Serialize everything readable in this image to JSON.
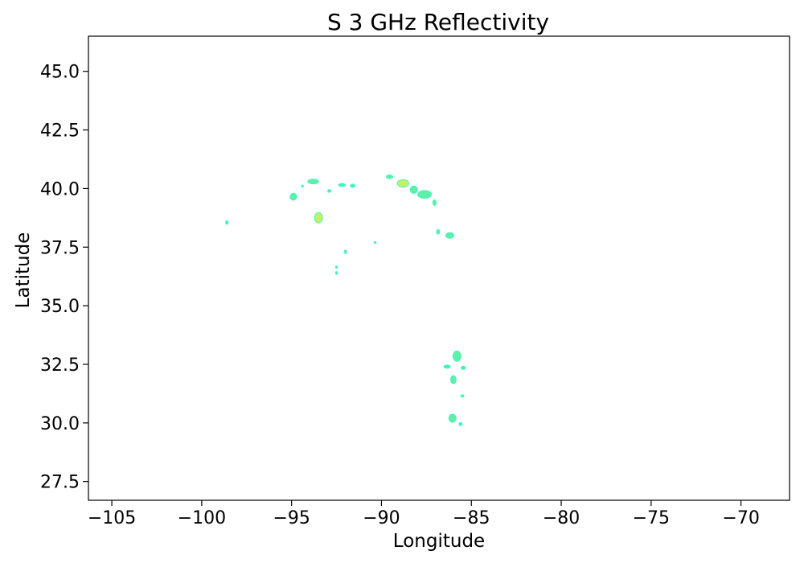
{
  "chart_data": {
    "type": "scatter",
    "title": "S 3 GHz Reflectivity",
    "xlabel": "Longitude",
    "ylabel": "Latitude",
    "xlim": [
      -106.3,
      -67.3
    ],
    "ylim": [
      26.7,
      46.5
    ],
    "x_ticks": [
      -105,
      -100,
      -95,
      -90,
      -85,
      -80,
      -75,
      -70
    ],
    "x_tick_labels": [
      "−105",
      "−100",
      "−95",
      "−90",
      "−85",
      "−80",
      "−75",
      "−70"
    ],
    "y_ticks": [
      27.5,
      30.0,
      32.5,
      35.0,
      37.5,
      40.0,
      42.5,
      45.0
    ],
    "y_tick_labels": [
      "27.5",
      "30.0",
      "32.5",
      "35.0",
      "37.5",
      "40.0",
      "42.5",
      "45.0"
    ],
    "grid": false,
    "colors": {
      "echo_light": "#40f5c0",
      "echo_mid": "#5ef0a6",
      "echo_strong": "#c6f064"
    },
    "points": [
      {
        "x": -98.6,
        "y": 38.55,
        "rx": 0.07,
        "ry": 0.08,
        "level": "light"
      },
      {
        "x": -94.9,
        "y": 39.65,
        "rx": 0.18,
        "ry": 0.15,
        "level": "mid"
      },
      {
        "x": -94.4,
        "y": 40.1,
        "rx": 0.04,
        "ry": 0.04,
        "level": "light"
      },
      {
        "x": -93.8,
        "y": 40.3,
        "rx": 0.3,
        "ry": 0.1,
        "level": "mid"
      },
      {
        "x": -93.5,
        "y": 38.75,
        "rx": 0.22,
        "ry": 0.22,
        "level": "strong"
      },
      {
        "x": -92.9,
        "y": 39.9,
        "rx": 0.09,
        "ry": 0.06,
        "level": "light"
      },
      {
        "x": -92.2,
        "y": 40.15,
        "rx": 0.2,
        "ry": 0.06,
        "level": "light"
      },
      {
        "x": -91.6,
        "y": 40.12,
        "rx": 0.13,
        "ry": 0.07,
        "level": "light"
      },
      {
        "x": -92.5,
        "y": 36.65,
        "rx": 0.03,
        "ry": 0.05,
        "level": "light"
      },
      {
        "x": -92.5,
        "y": 36.4,
        "rx": 0.04,
        "ry": 0.06,
        "level": "light"
      },
      {
        "x": -92.0,
        "y": 37.3,
        "rx": 0.06,
        "ry": 0.08,
        "level": "light"
      },
      {
        "x": -90.35,
        "y": 37.7,
        "rx": 0.03,
        "ry": 0.04,
        "level": "light"
      },
      {
        "x": -89.55,
        "y": 40.5,
        "rx": 0.18,
        "ry": 0.08,
        "level": "mid"
      },
      {
        "x": -88.8,
        "y": 40.22,
        "rx": 0.32,
        "ry": 0.16,
        "level": "strong"
      },
      {
        "x": -88.2,
        "y": 39.95,
        "rx": 0.2,
        "ry": 0.16,
        "level": "mid"
      },
      {
        "x": -87.6,
        "y": 39.75,
        "rx": 0.38,
        "ry": 0.17,
        "level": "mid"
      },
      {
        "x": -87.05,
        "y": 39.4,
        "rx": 0.09,
        "ry": 0.12,
        "level": "mid"
      },
      {
        "x": -86.85,
        "y": 38.15,
        "rx": 0.09,
        "ry": 0.1,
        "level": "mid"
      },
      {
        "x": -86.2,
        "y": 38.0,
        "rx": 0.22,
        "ry": 0.12,
        "level": "mid"
      },
      {
        "x": -85.8,
        "y": 32.85,
        "rx": 0.22,
        "ry": 0.22,
        "level": "mid"
      },
      {
        "x": -86.35,
        "y": 32.4,
        "rx": 0.18,
        "ry": 0.07,
        "level": "light"
      },
      {
        "x": -85.45,
        "y": 32.35,
        "rx": 0.12,
        "ry": 0.07,
        "level": "light"
      },
      {
        "x": -86.0,
        "y": 31.85,
        "rx": 0.15,
        "ry": 0.17,
        "level": "mid"
      },
      {
        "x": -85.5,
        "y": 31.15,
        "rx": 0.09,
        "ry": 0.05,
        "level": "light"
      },
      {
        "x": -86.05,
        "y": 30.2,
        "rx": 0.2,
        "ry": 0.17,
        "level": "mid"
      },
      {
        "x": -85.6,
        "y": 29.95,
        "rx": 0.08,
        "ry": 0.07,
        "level": "light"
      }
    ]
  }
}
